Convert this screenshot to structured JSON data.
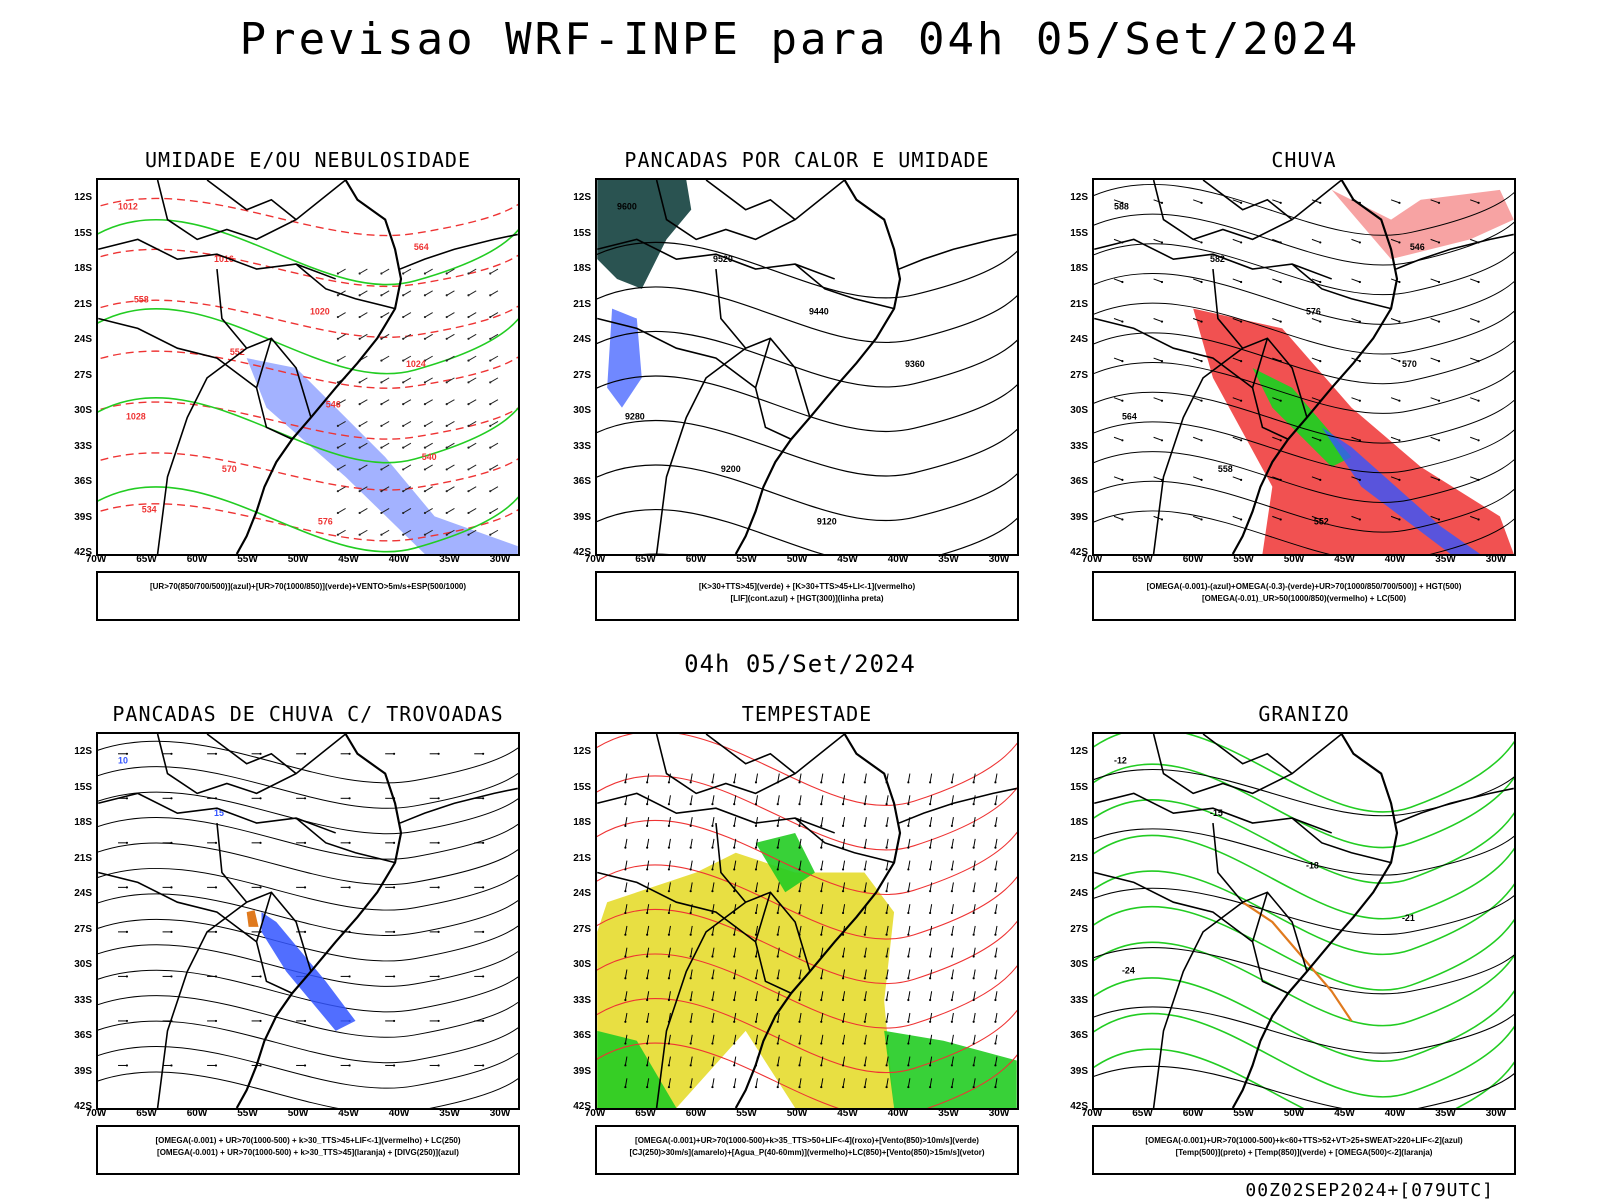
{
  "title": "Previsao WRF-INPE  para 04h 05/Set/2024",
  "mid_date": "04h 05/Set/2024",
  "footer": "00Z02SEP2024+[079UTC]",
  "axes": {
    "y_labels": [
      "12S",
      "15S",
      "18S",
      "21S",
      "24S",
      "27S",
      "30S",
      "33S",
      "36S",
      "39S",
      "42S"
    ],
    "x_labels": [
      "70W",
      "65W",
      "60W",
      "55W",
      "50W",
      "45W",
      "40W",
      "35W",
      "30W"
    ]
  },
  "panels": [
    {
      "id": "umidade",
      "title": "UMIDADE E/OU NEBULOSIDADE",
      "legend": [
        "[UR>70(850/700/500)](azul)+[UR>70(1000/850)](verde)+VENTO>5m/s+ESP(500/1000)"
      ]
    },
    {
      "id": "pancadas-calor",
      "title": "PANCADAS POR CALOR E UMIDADE",
      "legend": [
        "[K>30+TTS>45](verde)  +  [K>30+TTS>45+LI<-1](vermelho)",
        "[LIF](cont.azul)  +  [HGT(300)](linha preta)"
      ]
    },
    {
      "id": "chuva",
      "title": "CHUVA",
      "legend": [
        "[OMEGA(-0.001)-(azul)+OMEGA(-0.3)-(verde)+UR>70(1000/850/700/500)]  +  HGT(500)",
        "[OMEGA(-0.01)_UR>50(1000/850)(vermelho)  +  LC(500)"
      ]
    },
    {
      "id": "trovoadas",
      "title": "PANCADAS DE CHUVA C/ TROVOADAS",
      "legend": [
        "[OMEGA(-0.001)  +  UR>70(1000-500)  +  k>30_TTS>45+LIF<-1](vermelho)  +  LC(250)",
        "[OMEGA(-0.001)  +  UR>70(1000-500)  +  k>30_TTS>45](laranja)  +  [DIVG(250)](azul)"
      ]
    },
    {
      "id": "tempestade",
      "title": "TEMPESTADE",
      "legend": [
        "[OMEGA(-0.001)+UR>70(1000-500)+k>35_TTS>50+LIF<-4](roxo)+[Vento(850)>10m/s](verde)",
        "[CJ(250)>30m/s](amarelo)+[Agua_P(40-60mm)](vermelho)+LC(850)+[Vento(850)>15m/s](vetor)"
      ]
    },
    {
      "id": "granizo",
      "title": "GRANIZO",
      "legend": [
        "[OMEGA(-0.001)+UR>70(1000-500)+k<60+TTS>52+VT>25+SWEAT>220+LIF<-2](azul)",
        "[Temp(500)](preto)  +  [Temp(850)](verde)  +  [OMEGA(500)<-2](laranja)"
      ]
    }
  ],
  "contour_labels": {
    "umidade": [
      "1012",
      "1016",
      "1020",
      "1024",
      "1028",
      "570",
      "576",
      "564",
      "558",
      "552",
      "546",
      "540",
      "534"
    ],
    "pancadas-calor": [
      "9600",
      "9520",
      "9440",
      "9360",
      "9280",
      "9200",
      "9120"
    ],
    "chuva": [
      "588",
      "582",
      "576",
      "570",
      "564",
      "558",
      "552",
      "546"
    ],
    "trovoadas": [
      "10",
      "15"
    ],
    "granizo": [
      "-12",
      "-15",
      "-18",
      "-21",
      "-24"
    ]
  },
  "colors": {
    "blue": "#3355ff",
    "green": "#22cc22",
    "red": "#ee3333",
    "yellow": "#e6dc2e",
    "orange": "#e07a1e",
    "darkteal": "#1f4a48"
  }
}
